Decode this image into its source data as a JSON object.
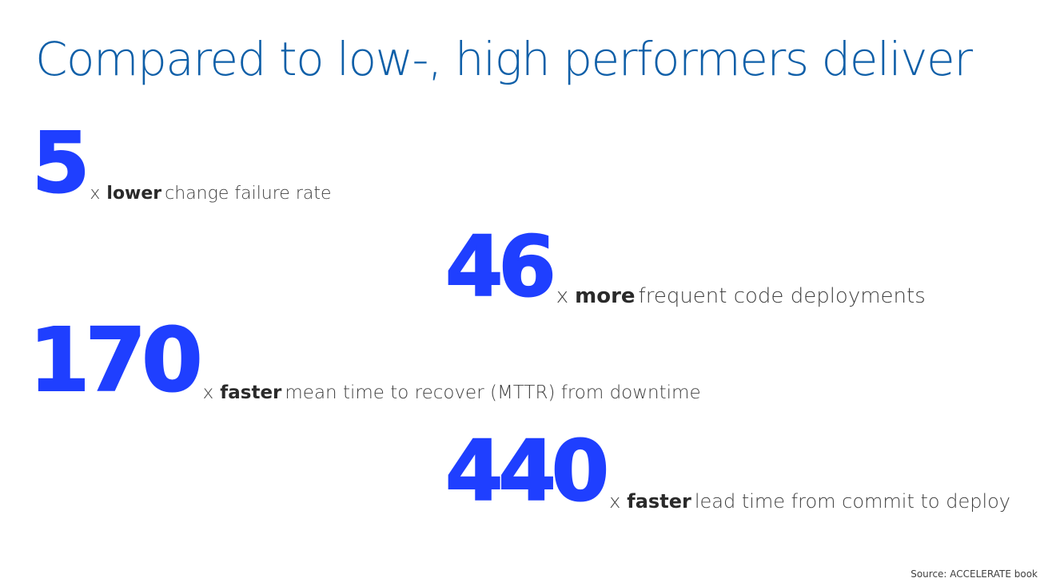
{
  "slide": {
    "title": "Compared to low-, high performers deliver",
    "stats": [
      {
        "value": "5",
        "multiplier": "x",
        "emphasis": "lower",
        "text": "change failure rate"
      },
      {
        "value": "46",
        "multiplier": "x",
        "emphasis": "more",
        "text": "frequent code  deployments"
      },
      {
        "value": "170",
        "multiplier": "x",
        "emphasis": "faster",
        "text": "mean time to recover (MTTR) from downtime"
      },
      {
        "value": "440",
        "multiplier": "x",
        "emphasis": "faster",
        "text": "lead time from commit to deploy"
      }
    ],
    "source": "Source:  ACCELERATE  book"
  },
  "colors": {
    "title": "#0f5fa8",
    "number": "#1f3fff",
    "body_text": "#404040"
  }
}
